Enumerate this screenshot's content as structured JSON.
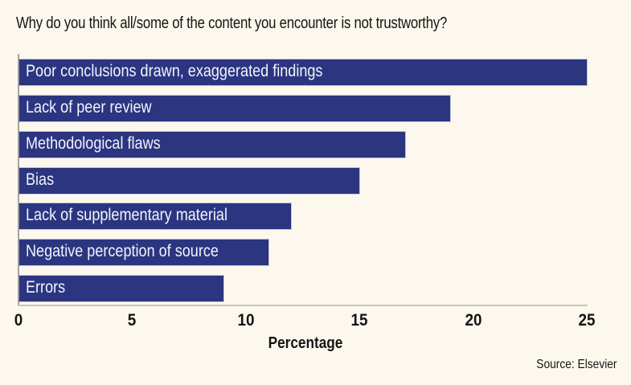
{
  "chart_data": {
    "type": "bar",
    "orientation": "horizontal",
    "title": "Why do you think all/some of the content you encounter is not trustworthy?",
    "categories": [
      "Poor conclusions drawn, exaggerated findings",
      "Lack of peer review",
      "Methodological flaws",
      "Bias",
      "Lack of supplementary material",
      "Negative perception of source",
      "Errors"
    ],
    "values": [
      25,
      19,
      17,
      15,
      12,
      11,
      9
    ],
    "xlabel": "Percentage",
    "ylabel": "",
    "xlim": [
      0,
      25
    ],
    "xticks": [
      "0",
      "5",
      "10",
      "15",
      "20",
      "25"
    ],
    "grid": false,
    "legend": null,
    "bar_color": "#2b3580",
    "source": "Source: Elsevier"
  },
  "colors": {
    "background": "#fdf8ee",
    "bar": "#2b3580",
    "bar_text": "#f3f4fb",
    "text": "#151515"
  }
}
